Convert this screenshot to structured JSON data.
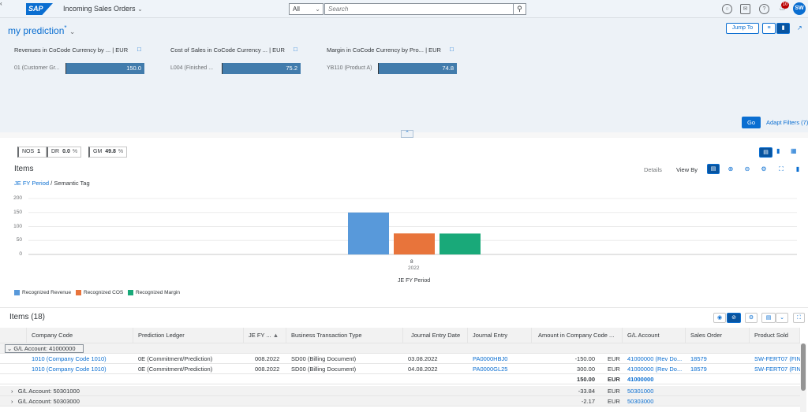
{
  "shell": {
    "app_title": "Incoming Sales Orders",
    "logo": "SAP",
    "scope": "All",
    "search_placeholder": "Search",
    "notification_count": "10",
    "avatar": "SW"
  },
  "header": {
    "variant": "my prediction",
    "variant_mark": "*",
    "jump_to": "Jump To",
    "filters": [
      {
        "label": "Revenues in CoCode Currency by ...",
        "unit": "| EUR",
        "key": "01 (Customer Gr...",
        "value": "150.0"
      },
      {
        "label": "Cost of Sales in CoCode Currency ...",
        "unit": "| EUR",
        "key": "L004 (Finished ...",
        "value": "75.2"
      },
      {
        "label": "Margin in CoCode Currency by Pro...",
        "unit": "| EUR",
        "key": "YB110 (Product A)",
        "value": "74.8"
      }
    ],
    "go": "Go",
    "adapt_filters": "Adapt Filters (7)"
  },
  "kpis": [
    {
      "name": "NOS",
      "value": "1",
      "unit": ""
    },
    {
      "name": "DR",
      "value": "0.0",
      "unit": "%"
    },
    {
      "name": "GM",
      "value": "49.8",
      "unit": "%"
    }
  ],
  "chart_panel": {
    "title": "Items",
    "details": "Details",
    "view_by": "View By",
    "breadcrumb_link": "JE FY Period",
    "breadcrumb_rest": " / Semantic Tag"
  },
  "chart_data": {
    "type": "bar",
    "categories": [
      "8"
    ],
    "category_sublabel": "2022",
    "xlabel": "JE FY Period",
    "ylim": [
      0,
      200
    ],
    "yticks": [
      0,
      50,
      100,
      150,
      200
    ],
    "series": [
      {
        "name": "Recognized Revenue",
        "values": [
          150.0
        ],
        "color": "#5899da"
      },
      {
        "name": "Recognized COS",
        "values": [
          75.2
        ],
        "color": "#e8743b"
      },
      {
        "name": "Recognized Margin",
        "values": [
          74.8
        ],
        "color": "#19a979"
      }
    ],
    "legend": "bottom-left",
    "grid": true
  },
  "table": {
    "title": "Items (18)",
    "columns": [
      "Company Code",
      "Prediction Ledger",
      "JE FY ...",
      "Business Transaction Type",
      "Journal Entry Date",
      "Journal Entry",
      "Amount in Company Code ...",
      "G/L Account",
      "Sales Order",
      "Product Sold"
    ],
    "group1": "G/L Account: 41000000",
    "rows": [
      {
        "company": "1010 (Company Code 1010)",
        "ledger": "0E (Commitment/Prediction)",
        "period": "008.2022",
        "btt": "SD00 (Billing Document)",
        "date": "03.08.2022",
        "je": "PA0000HBJ0",
        "amount": "-150.00",
        "cur": "EUR",
        "gl": "41000000 (Rev Do...",
        "so": "18579",
        "prod": "SW-FERT07 (FIN4"
      },
      {
        "company": "1010 (Company Code 1010)",
        "ledger": "0E (Commitment/Prediction)",
        "period": "008.2022",
        "btt": "SD00 (Billing Document)",
        "date": "04.08.2022",
        "je": "PA0000GL25",
        "amount": "300.00",
        "cur": "EUR",
        "gl": "41000000 (Rev Do...",
        "so": "18579",
        "prod": "SW-FERT07 (FIN4"
      }
    ],
    "subtotal": {
      "amount": "150.00",
      "cur": "EUR",
      "gl": "41000000"
    },
    "groups": [
      {
        "label": "G/L Account: 50301000",
        "amount": "-33.84",
        "cur": "EUR",
        "gl": "50301000"
      },
      {
        "label": "G/L Account: 50303000",
        "amount": "-2.17",
        "cur": "EUR",
        "gl": "50303000"
      }
    ]
  }
}
